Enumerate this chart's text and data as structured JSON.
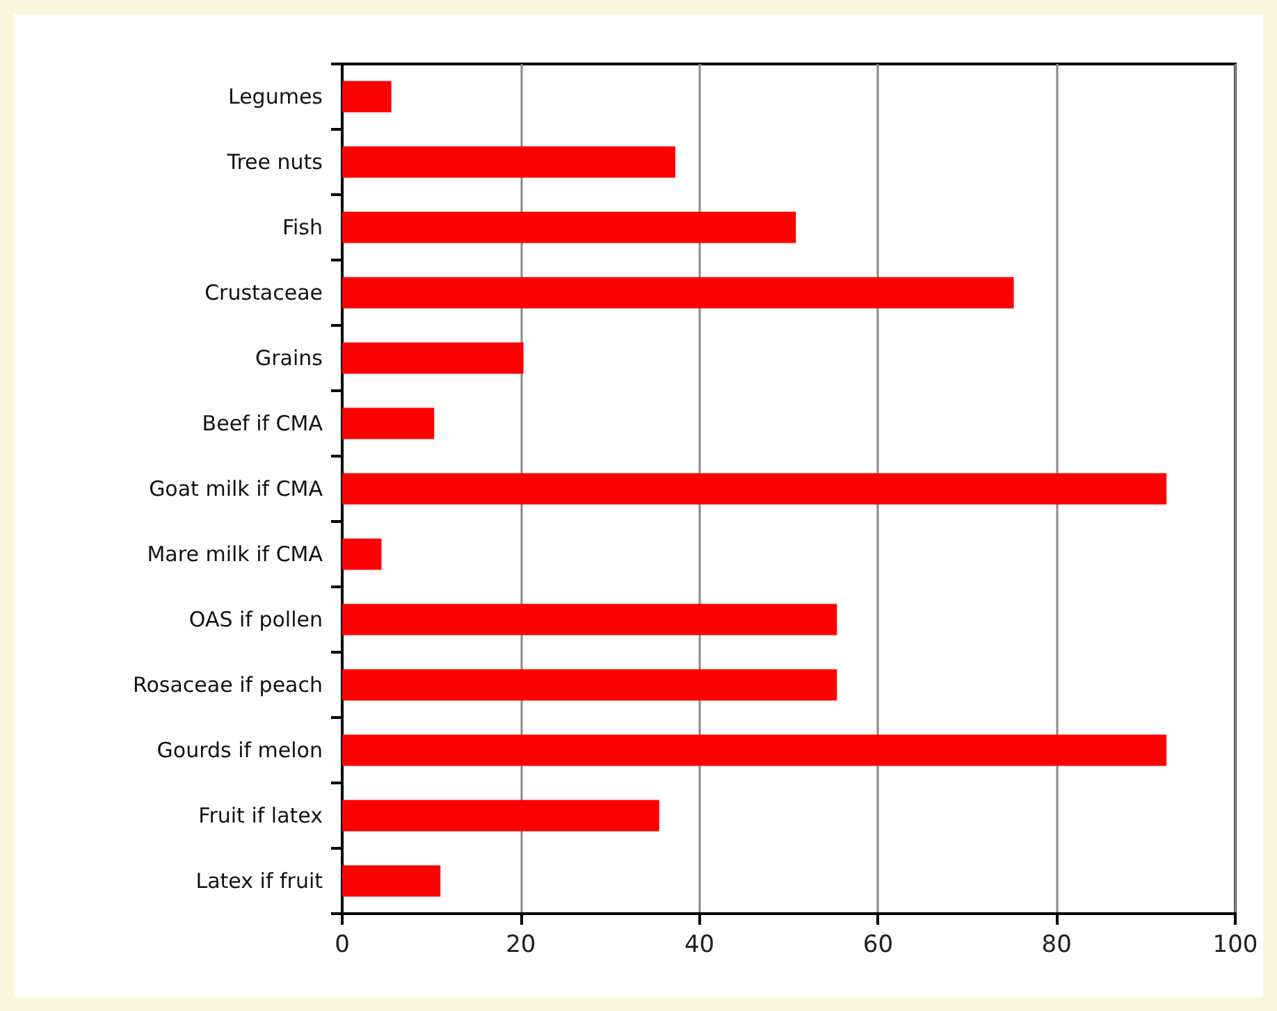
{
  "chart_data": {
    "type": "bar",
    "orientation": "horizontal",
    "categories": [
      "Legumes",
      "Tree nuts",
      "Fish",
      "Crustaceae",
      "Grains",
      "Beef if CMA",
      "Goat milk if CMA",
      "Mare milk if CMA",
      "OAS if pollen",
      "Rosaceae if peach",
      "Gourds if melon",
      "Fruit if latex",
      "Latex if fruit"
    ],
    "values": [
      5.5,
      37.3,
      50.8,
      75.2,
      20.3,
      10.3,
      92.3,
      4.4,
      55.4,
      55.4,
      92.3,
      35.5,
      11.0
    ],
    "color": "#ff0000",
    "xlim": [
      0,
      100
    ],
    "xticks": [
      0,
      20,
      40,
      60,
      80,
      100
    ],
    "grid": "x"
  }
}
